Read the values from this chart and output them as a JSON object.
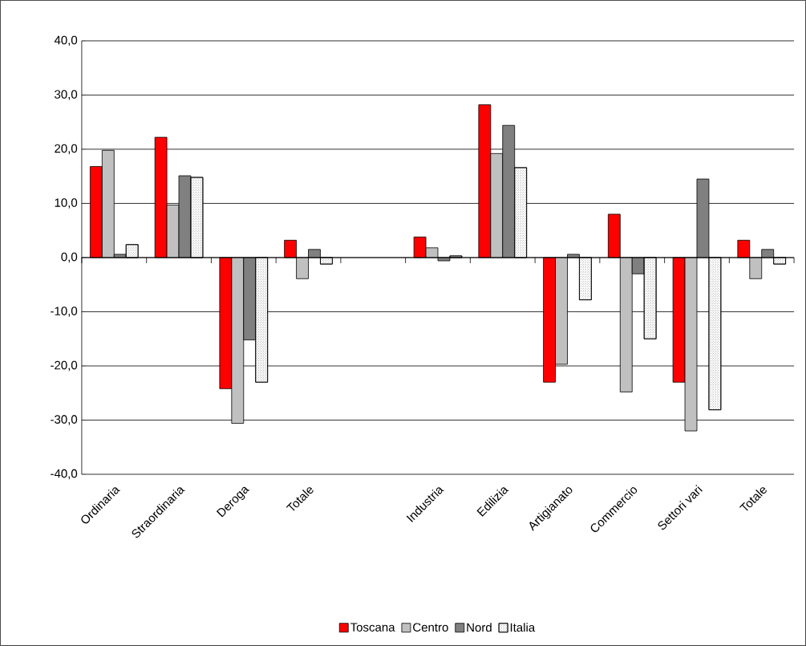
{
  "chart_data": {
    "type": "bar",
    "categories": [
      "Ordinaria",
      "Straordinaria",
      "Deroga",
      "Totale",
      null,
      "Industria",
      "Edilizia",
      "Artigianato",
      "Commercio",
      "Settori vari",
      "Totale"
    ],
    "series": [
      {
        "name": "Toscana",
        "color": "#ff0000",
        "values": [
          16.8,
          22.2,
          -24.2,
          3.2,
          null,
          3.8,
          28.2,
          -23.0,
          8.0,
          -23.0,
          3.2
        ]
      },
      {
        "name": "Centro",
        "color": "#c0c0c0",
        "values": [
          19.8,
          9.7,
          -30.6,
          -3.9,
          null,
          1.8,
          19.2,
          -19.7,
          -24.8,
          -32.0,
          -3.9
        ]
      },
      {
        "name": "Nord",
        "color": "#808080",
        "values": [
          0.6,
          15.1,
          -15.2,
          1.5,
          null,
          -0.6,
          24.4,
          0.6,
          -3.0,
          14.5,
          1.5
        ]
      },
      {
        "name": "Italia",
        "color": "#ffffff",
        "values": [
          2.4,
          14.8,
          -23.0,
          -1.2,
          null,
          0.3,
          16.6,
          -7.8,
          -15.0,
          -28.1,
          -1.2
        ]
      }
    ],
    "ylim": [
      -40,
      40
    ],
    "yticks": [
      {
        "value": -40,
        "label": "-40,0"
      },
      {
        "value": -30,
        "label": "-30,0"
      },
      {
        "value": -20,
        "label": "-20,0"
      },
      {
        "value": -10,
        "label": "-10,0"
      },
      {
        "value": 0,
        "label": "0,0"
      },
      {
        "value": 10,
        "label": "10,0"
      },
      {
        "value": 20,
        "label": "20,0"
      },
      {
        "value": 30,
        "label": "30,0"
      },
      {
        "value": 40,
        "label": "40,0"
      }
    ],
    "grid": "y",
    "legend": "bottom"
  }
}
